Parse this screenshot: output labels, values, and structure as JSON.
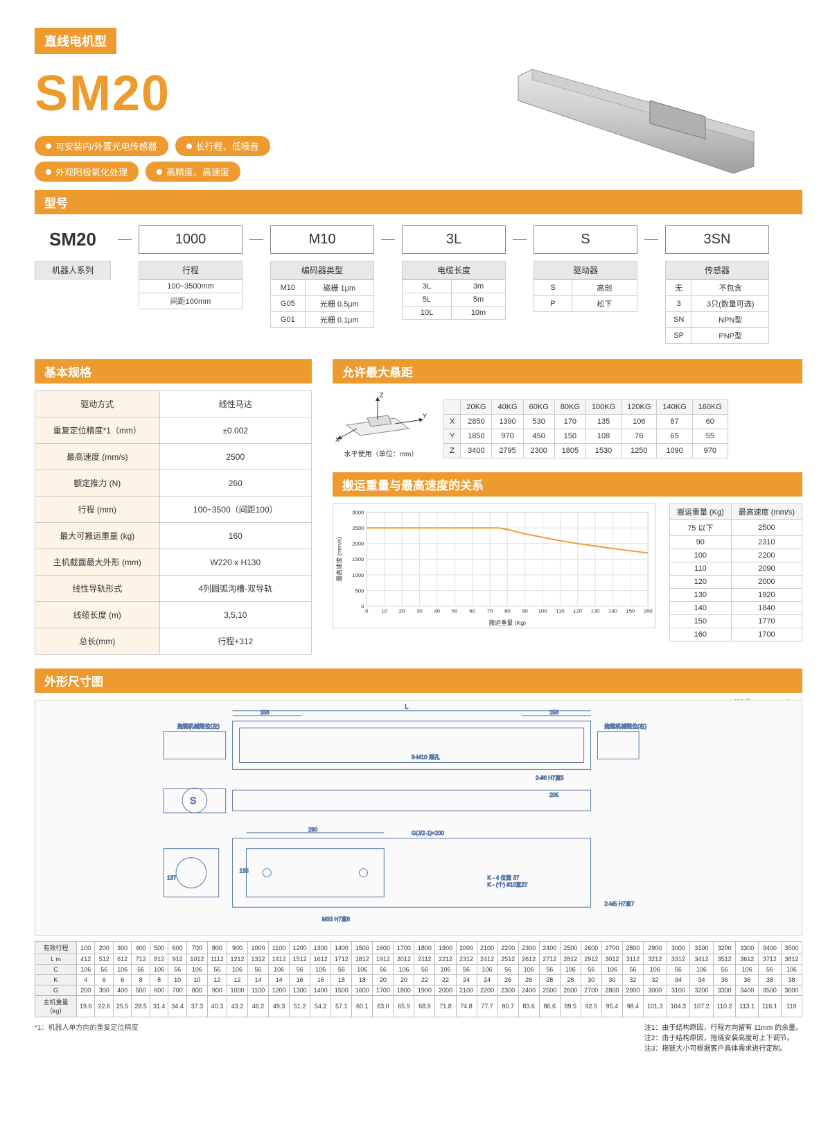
{
  "colors": {
    "accent": "#ed9b2f",
    "bg": "#ffffff",
    "grid": "#e0e0e0",
    "line": "#ed9b2f"
  },
  "header": {
    "category": "直线电机型",
    "model": "SM20"
  },
  "pills": [
    [
      "可安装内/外置光电传感器",
      "长行程、低噪音"
    ],
    [
      "外观阳极氧化处理",
      "高精度、高速度"
    ]
  ],
  "model_section": {
    "title": "型号",
    "series_label": "机器人系列",
    "series": "SM20",
    "boxes": [
      {
        "val": "1000",
        "label": "行程",
        "rows": [
          [
            "100~3500mm"
          ],
          [
            "间距100mm"
          ]
        ]
      },
      {
        "val": "M10",
        "label": "编码器类型",
        "rows": [
          [
            "M10",
            "磁栅 1μm"
          ],
          [
            "G05",
            "光栅 0.5μm"
          ],
          [
            "G01",
            "光栅 0.1μm"
          ]
        ]
      },
      {
        "val": "3L",
        "label": "电缆长度",
        "rows": [
          [
            "3L",
            "3m"
          ],
          [
            "5L",
            "5m"
          ],
          [
            "10L",
            "10m"
          ]
        ]
      },
      {
        "val": "S",
        "label": "驱动器",
        "rows": [
          [
            "S",
            "高创"
          ],
          [
            "P",
            "松下"
          ]
        ]
      },
      {
        "val": "3SN",
        "label": "传感器",
        "rows": [
          [
            "无",
            "不包含"
          ],
          [
            "3",
            "3只(数量可选)"
          ],
          [
            "SN",
            "NPN型"
          ],
          [
            "SP",
            "PNP型"
          ]
        ]
      }
    ]
  },
  "spec": {
    "title": "基本规格",
    "rows": [
      [
        "驱动方式",
        "线性马达"
      ],
      [
        "重复定位精度*1（mm）",
        "±0.002"
      ],
      [
        "最高速度 (mm/s)",
        "2500"
      ],
      [
        "额定推力 (N)",
        "260"
      ],
      [
        "行程 (mm)",
        "100~3500（间距100）"
      ],
      [
        "最大可搬运重量 (kg)",
        "160"
      ],
      [
        "主机截面最大外形 (mm)",
        "W220 x H130"
      ],
      [
        "线性导轨形式",
        "4列圆弧沟槽-双导轨"
      ],
      [
        "线缆长度 (m)",
        "3,5,10"
      ],
      [
        "总长(mm)",
        "行程+312"
      ]
    ]
  },
  "overhang": {
    "title": "允许最大悬距",
    "note": "水平使用（单位：mm）",
    "headers": [
      "",
      "20KG",
      "40KG",
      "60KG",
      "80KG",
      "100KG",
      "120KG",
      "140KG",
      "160KG"
    ],
    "rows": [
      [
        "X",
        "2850",
        "1390",
        "530",
        "170",
        "135",
        "106",
        "87",
        "60"
      ],
      [
        "Y",
        "1850",
        "970",
        "450",
        "150",
        "108",
        "76",
        "65",
        "55"
      ],
      [
        "Z",
        "3400",
        "2795",
        "2300",
        "1805",
        "1530",
        "1250",
        "1090",
        "970"
      ]
    ]
  },
  "chart": {
    "title": "搬运重量与最高速度的关系",
    "xlabel": "搬运重量 (Kg)",
    "ylabel": "最高速度 (mm/s)",
    "xlim": [
      0,
      160
    ],
    "ylim": [
      0,
      3000
    ],
    "xtick": 10,
    "ytick": 500,
    "x": [
      0,
      50,
      60,
      70,
      75,
      80,
      90,
      100,
      110,
      120,
      130,
      140,
      150,
      160
    ],
    "y": [
      2500,
      2500,
      2500,
      2500,
      2500,
      2450,
      2310,
      2200,
      2090,
      2000,
      1920,
      1840,
      1770,
      1700
    ],
    "line_color": "#ed9b2f",
    "line_width": 2,
    "grid_color": "#e0e0e0",
    "bg": "#ffffff",
    "table": {
      "headers": [
        "搬运重量 (Kg)",
        "最高速度 (mm/s)"
      ],
      "rows": [
        [
          "75 以下",
          "2500"
        ],
        [
          "90",
          "2310"
        ],
        [
          "100",
          "2200"
        ],
        [
          "110",
          "2090"
        ],
        [
          "120",
          "2000"
        ],
        [
          "130",
          "1920"
        ],
        [
          "140",
          "1840"
        ],
        [
          "150",
          "1770"
        ],
        [
          "160",
          "1700"
        ]
      ]
    }
  },
  "dim": {
    "title": "外形尺寸图",
    "unit": "（单位 Unit：mm）"
  },
  "big_table": {
    "row_labels": [
      "有效行程",
      "L m",
      "C",
      "K",
      "G",
      "主机重量（kg）"
    ],
    "stroke": [
      "100",
      "200",
      "300",
      "400",
      "500",
      "600",
      "700",
      "800",
      "900",
      "1000",
      "1100",
      "1200",
      "1300",
      "1400",
      "1500",
      "1600",
      "1700",
      "1800",
      "1900",
      "2000",
      "2100",
      "2200",
      "2300",
      "2400",
      "2500",
      "2600",
      "2700",
      "2800",
      "2900",
      "3000",
      "3100",
      "3200",
      "3300",
      "3400",
      "3500"
    ],
    "L": [
      "412",
      "512",
      "612",
      "712",
      "812",
      "912",
      "1012",
      "1112",
      "1212",
      "1312",
      "1412",
      "1512",
      "1612",
      "1712",
      "1812",
      "1912",
      "2012",
      "2112",
      "2212",
      "2312",
      "2412",
      "2512",
      "2612",
      "2712",
      "2812",
      "2912",
      "3012",
      "3112",
      "3212",
      "3312",
      "3412",
      "3512",
      "3612",
      "3712",
      "3812"
    ],
    "C": [
      "106",
      "56",
      "106",
      "56",
      "106",
      "56",
      "106",
      "56",
      "106",
      "56",
      "106",
      "56",
      "106",
      "56",
      "106",
      "56",
      "106",
      "56",
      "106",
      "56",
      "106",
      "56",
      "106",
      "56",
      "106",
      "56",
      "106",
      "56",
      "106",
      "56",
      "106",
      "56",
      "106",
      "56",
      "106"
    ],
    "K": [
      "4",
      "6",
      "6",
      "8",
      "8",
      "10",
      "10",
      "12",
      "12",
      "14",
      "14",
      "16",
      "16",
      "18",
      "18",
      "20",
      "20",
      "22",
      "22",
      "24",
      "24",
      "26",
      "26",
      "28",
      "28",
      "30",
      "30",
      "32",
      "32",
      "34",
      "34",
      "36",
      "36",
      "38",
      "38"
    ],
    "G": [
      "200",
      "300",
      "400",
      "500",
      "600",
      "700",
      "800",
      "900",
      "1000",
      "1100",
      "1200",
      "1300",
      "1400",
      "1500",
      "1600",
      "1700",
      "1800",
      "1900",
      "2000",
      "2100",
      "2200",
      "2300",
      "2400",
      "2500",
      "2600",
      "2700",
      "2800",
      "2900",
      "3000",
      "3100",
      "3200",
      "3300",
      "3400",
      "3500",
      "3600"
    ],
    "W": [
      "19.6",
      "22.6",
      "25.5",
      "28.5",
      "31.4",
      "34.4",
      "37.3",
      "40.3",
      "43.2",
      "46.2",
      "49.3",
      "51.2",
      "54.2",
      "57.1",
      "60.1",
      "63.0",
      "65.9",
      "68.9",
      "71.8",
      "74.8",
      "77.7",
      "80.7",
      "83.6",
      "86.6",
      "89.5",
      "92.5",
      "95.4",
      "98.4",
      "101.3",
      "104.3",
      "107.2",
      "110.2",
      "113.1",
      "116.1",
      "119"
    ]
  },
  "foot": {
    "left": "*1：机器人单方向的重复定位精度",
    "right": [
      "注1：由于结构原因，行程方向留有 11mm 的余量。",
      "注2：由于结构原因，拖链安装高度可上下调节。",
      "注3：拖链大小可根据客户具体需求进行定制。"
    ]
  }
}
